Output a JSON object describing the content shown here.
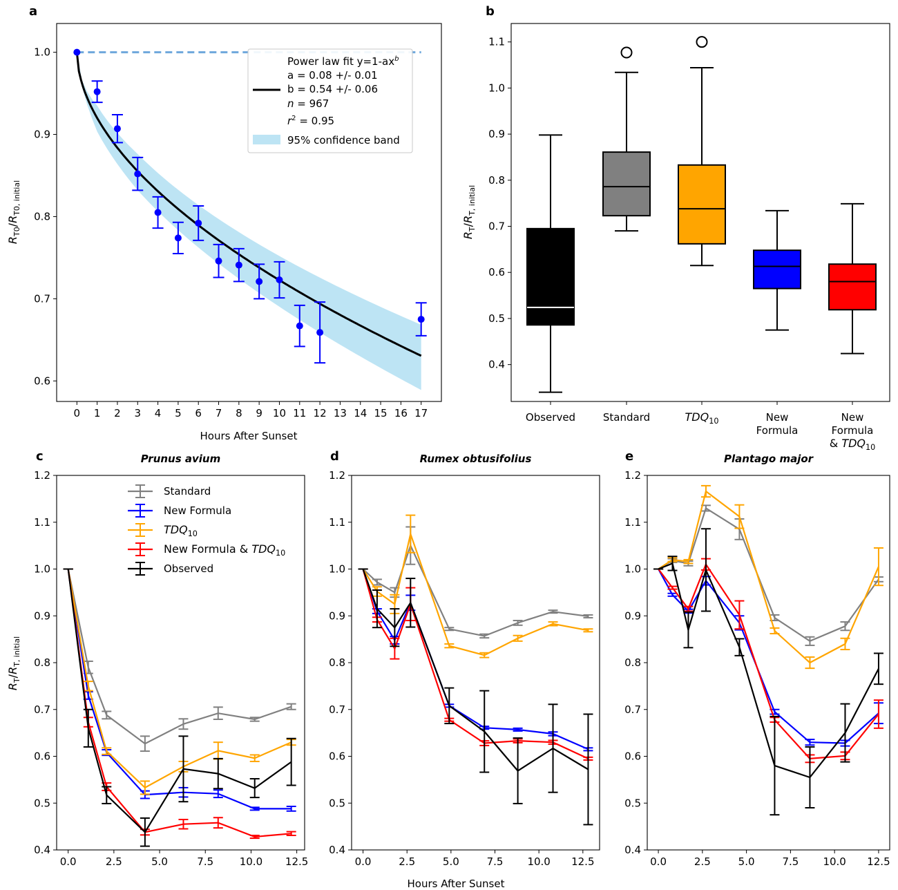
{
  "colors": {
    "standard": "#808080",
    "new_formula": "#0000ff",
    "tdq10": "#ffa500",
    "new_tdq10": "#ff0000",
    "observed": "#000000",
    "fit_line": "#000000",
    "band": "#87ceeb",
    "dashed": "#6fa8dc",
    "points": "#0000ff"
  },
  "chart_data": [
    {
      "id": "a",
      "type": "scatter",
      "panel_label": "a",
      "xlabel": "Hours After Sunset",
      "ylabel": "R_T0/R_T0, initial",
      "xlim": [
        -1,
        18
      ],
      "ylim": [
        0.575,
        1.035
      ],
      "xticks": [
        0,
        1,
        2,
        3,
        4,
        5,
        6,
        7,
        8,
        9,
        10,
        11,
        12,
        13,
        14,
        15,
        16,
        17
      ],
      "yticks": [
        0.6,
        0.7,
        0.8,
        0.9,
        1.0
      ],
      "x": [
        0,
        1,
        2,
        3,
        4,
        5,
        6,
        7,
        8,
        9,
        10,
        11,
        12,
        17
      ],
      "y": [
        1.0,
        0.952,
        0.907,
        0.852,
        0.805,
        0.774,
        0.792,
        0.746,
        0.741,
        0.721,
        0.723,
        0.667,
        0.659,
        0.675
      ],
      "yerr": [
        0,
        0.013,
        0.017,
        0.02,
        0.019,
        0.019,
        0.021,
        0.02,
        0.02,
        0.021,
        0.022,
        0.025,
        0.037,
        0.02
      ],
      "fit": {
        "a": 0.08,
        "b": 0.54
      },
      "reference_line": 1.0,
      "legend": {
        "placement": "top-right",
        "fit_label": "Power law fit y=1-ax",
        "fit_exp": "b",
        "a_text": "a = 0.08 +/- 0.01",
        "b_text": "b = 0.54 +/- 0.06",
        "n_name": "n",
        "n_text": " = 967",
        "r2_name": "r",
        "r2_exp": "2",
        "r2_text": " = 0.95",
        "band_label": "95% confidence band"
      }
    },
    {
      "id": "b",
      "type": "box",
      "panel_label": "b",
      "ylabel": "R_T/R_T, initial",
      "ylim": [
        0.32,
        1.14
      ],
      "yticks": [
        0.4,
        0.5,
        0.6,
        0.7,
        0.8,
        0.9,
        1.0,
        1.1
      ],
      "categories": [
        {
          "name": "Observed",
          "lines": [
            "Observed"
          ]
        },
        {
          "name": "Standard",
          "lines": [
            "Standard"
          ]
        },
        {
          "name": "TDQ10",
          "lines": [
            "TDQ10"
          ]
        },
        {
          "name": "New Formula",
          "lines": [
            "New",
            "Formula"
          ]
        },
        {
          "name": "New Formula & TDQ10",
          "lines": [
            "New",
            "Formula",
            "& TDQ10"
          ]
        }
      ],
      "boxes": [
        {
          "whislo": 0.34,
          "q1": 0.486,
          "med": 0.524,
          "q3": 0.695,
          "whishi": 0.898,
          "fliers": [],
          "color": "#000000"
        },
        {
          "whislo": 0.69,
          "q1": 0.723,
          "med": 0.786,
          "q3": 0.861,
          "whishi": 1.034,
          "fliers": [
            1.077
          ],
          "color": "#808080"
        },
        {
          "whislo": 0.615,
          "q1": 0.662,
          "med": 0.738,
          "q3": 0.833,
          "whishi": 1.044,
          "fliers": [
            1.1
          ],
          "color": "#ffa500"
        },
        {
          "whislo": 0.475,
          "q1": 0.565,
          "med": 0.613,
          "q3": 0.648,
          "whishi": 0.734,
          "fliers": [],
          "color": "#0000ff"
        },
        {
          "whislo": 0.424,
          "q1": 0.519,
          "med": 0.58,
          "q3": 0.618,
          "whishi": 0.749,
          "fliers": [],
          "color": "#ff0000"
        }
      ]
    },
    {
      "id": "c",
      "type": "line",
      "panel_label": "c",
      "title": "Prunus avium",
      "ylabel": "R_T/R_T, initial",
      "xlim": [
        -0.63,
        12.93
      ],
      "ylim": [
        0.4,
        1.2
      ],
      "xticks": [
        0.0,
        2.5,
        5.0,
        7.5,
        10.0,
        12.5
      ],
      "yticks": [
        0.4,
        0.5,
        0.6,
        0.7,
        0.8,
        0.9,
        1.0,
        1.1,
        1.2
      ],
      "x": [
        0,
        1.1,
        2.1,
        4.2,
        6.3,
        8.2,
        10.2,
        12.2
      ],
      "legend": {
        "placement": "top-center"
      },
      "series": [
        {
          "name": "Standard",
          "name_parts": [
            "Standard"
          ],
          "color": "#808080",
          "values": [
            1.0,
            0.79,
            0.688,
            0.627,
            0.669,
            0.692,
            0.679,
            0.706
          ],
          "err": [
            0,
            0.013,
            0.008,
            0.016,
            0.011,
            0.013,
            0.004,
            0.006
          ]
        },
        {
          "name": "New Formula",
          "name_parts": [
            "New Formula"
          ],
          "color": "#0000ff",
          "values": [
            1.0,
            0.73,
            0.608,
            0.518,
            0.523,
            0.52,
            0.488,
            0.488
          ],
          "err": [
            0,
            0.008,
            0.006,
            0.008,
            0.01,
            0.008,
            0.003,
            0.005
          ]
        },
        {
          "name": "TDQ10",
          "name_parts": [
            "TDQ10"
          ],
          "color": "#ffa500",
          "values": [
            1.0,
            0.75,
            0.611,
            0.533,
            0.578,
            0.612,
            0.596,
            0.63
          ],
          "err": [
            0,
            0.01,
            0.007,
            0.014,
            0.011,
            0.018,
            0.007,
            0.006
          ]
        },
        {
          "name": "New Formula & TDQ10",
          "name_parts": [
            "New Formula & ",
            "TDQ10"
          ],
          "color": "#ff0000",
          "values": [
            1.0,
            0.673,
            0.535,
            0.438,
            0.455,
            0.458,
            0.428,
            0.435
          ],
          "err": [
            0,
            0.01,
            0.008,
            0.006,
            0.01,
            0.011,
            0.003,
            0.004
          ]
        },
        {
          "name": "Observed",
          "name_parts": [
            "Observed"
          ],
          "color": "#000000",
          "values": [
            1.0,
            0.66,
            0.517,
            0.438,
            0.573,
            0.563,
            0.532,
            0.588
          ],
          "err": [
            0,
            0.04,
            0.018,
            0.03,
            0.07,
            0.032,
            0.02,
            0.05
          ]
        }
      ]
    },
    {
      "id": "d",
      "type": "line",
      "panel_label": "d",
      "title": "Rumex obtusifolius",
      "xlim": [
        -0.65,
        13.45
      ],
      "ylim": [
        0.4,
        1.2
      ],
      "xticks": [
        0.0,
        2.5,
        5.0,
        7.5,
        10.0,
        12.5
      ],
      "yticks": [
        0.4,
        0.5,
        0.6,
        0.7,
        0.8,
        0.9,
        1.0,
        1.1,
        1.2
      ],
      "x": [
        0,
        0.8,
        1.8,
        2.7,
        4.9,
        6.9,
        8.8,
        10.8,
        12.8
      ],
      "series": [
        {
          "name": "Standard",
          "color": "#808080",
          "values": [
            1.0,
            0.972,
            0.95,
            1.05,
            0.872,
            0.857,
            0.885,
            0.909,
            0.899
          ],
          "err": [
            0,
            0.006,
            0.01,
            0.04,
            0.003,
            0.004,
            0.005,
            0.003,
            0.003
          ]
        },
        {
          "name": "New Formula",
          "color": "#0000ff",
          "values": [
            1.0,
            0.91,
            0.848,
            0.928,
            0.708,
            0.661,
            0.657,
            0.648,
            0.615
          ],
          "err": [
            0,
            0.005,
            0.008,
            0.016,
            0.003,
            0.003,
            0.003,
            0.004,
            0.003
          ]
        },
        {
          "name": "TDQ10",
          "color": "#ffa500",
          "values": [
            1.0,
            0.952,
            0.925,
            1.075,
            0.836,
            0.816,
            0.852,
            0.883,
            0.869
          ],
          "err": [
            0,
            0.01,
            0.02,
            0.04,
            0.004,
            0.005,
            0.006,
            0.004,
            0.003
          ]
        },
        {
          "name": "New Formula & TDQ10",
          "color": "#ff0000",
          "values": [
            1.0,
            0.892,
            0.83,
            0.925,
            0.678,
            0.628,
            0.633,
            0.63,
            0.595
          ],
          "err": [
            0,
            0.005,
            0.022,
            0.035,
            0.003,
            0.005,
            0.004,
            0.004,
            0.003
          ]
        },
        {
          "name": "Observed",
          "color": "#000000",
          "values": [
            1.0,
            0.915,
            0.875,
            0.928,
            0.708,
            0.653,
            0.569,
            0.617,
            0.572
          ],
          "err": [
            0,
            0.04,
            0.04,
            0.052,
            0.038,
            0.087,
            0.07,
            0.094,
            0.118
          ]
        }
      ]
    },
    {
      "id": "e",
      "type": "line",
      "panel_label": "e",
      "title": "Plantago major",
      "xlim": [
        -0.63,
        13.13
      ],
      "ylim": [
        0.4,
        1.2
      ],
      "xticks": [
        0.0,
        2.5,
        5.0,
        7.5,
        10.0,
        12.5
      ],
      "yticks": [
        0.4,
        0.5,
        0.6,
        0.7,
        0.8,
        0.9,
        1.0,
        1.1,
        1.2
      ],
      "x": [
        0,
        0.8,
        1.7,
        2.7,
        4.6,
        6.6,
        8.6,
        10.6,
        12.5
      ],
      "series": [
        {
          "name": "Standard",
          "color": "#808080",
          "values": [
            1.0,
            1.018,
            1.012,
            1.13,
            1.085,
            0.896,
            0.846,
            0.878,
            0.978
          ],
          "err": [
            0,
            0.004,
            0.005,
            0.006,
            0.022,
            0.006,
            0.009,
            0.009,
            0.005
          ]
        },
        {
          "name": "New Formula",
          "color": "#0000ff",
          "values": [
            1.0,
            0.945,
            0.91,
            0.975,
            0.885,
            0.695,
            0.63,
            0.628,
            0.692
          ],
          "err": [
            0,
            0.003,
            0.004,
            0.009,
            0.015,
            0.005,
            0.006,
            0.006,
            0.022
          ]
        },
        {
          "name": "TDQ10",
          "color": "#ffa500",
          "values": [
            1.0,
            1.02,
            1.016,
            1.166,
            1.112,
            0.868,
            0.8,
            0.84,
            1.005
          ],
          "err": [
            0,
            0.004,
            0.004,
            0.012,
            0.025,
            0.006,
            0.012,
            0.012,
            0.04
          ]
        },
        {
          "name": "New Formula & TDQ10",
          "color": "#ff0000",
          "values": [
            1.0,
            0.96,
            0.915,
            1.01,
            0.902,
            0.678,
            0.595,
            0.601,
            0.69
          ],
          "err": [
            0,
            0.003,
            0.005,
            0.012,
            0.03,
            0.005,
            0.008,
            0.008,
            0.03
          ]
        },
        {
          "name": "Observed",
          "color": "#000000",
          "values": [
            1.0,
            1.012,
            0.87,
            0.998,
            0.833,
            0.58,
            0.555,
            0.65,
            0.787
          ],
          "err": [
            0,
            0.015,
            0.038,
            0.088,
            0.018,
            0.105,
            0.065,
            0.062,
            0.033
          ]
        }
      ]
    }
  ],
  "shared": {
    "xlabel_bottom": "Hours After Sunset"
  }
}
